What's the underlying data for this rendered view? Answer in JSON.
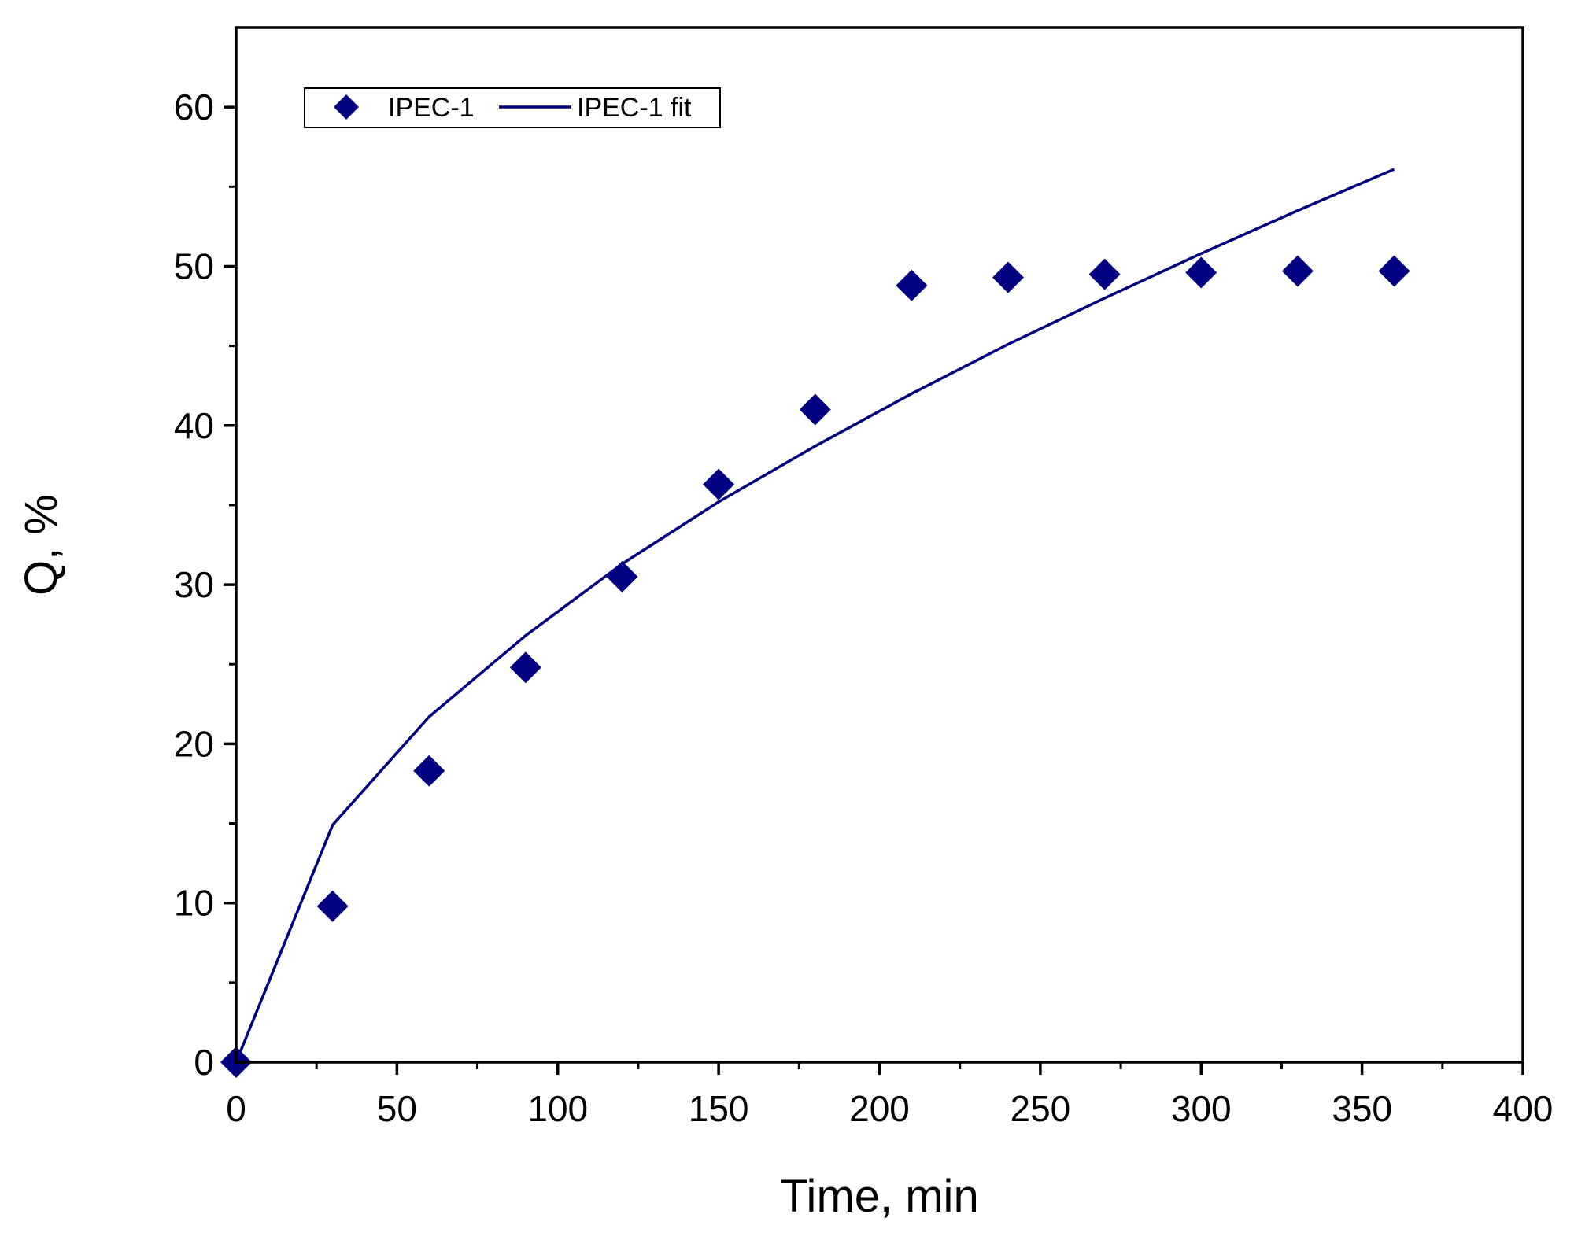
{
  "chart_data": {
    "type": "scatter",
    "title": "",
    "xlabel": "Time, min",
    "ylabel": "Q, %",
    "xlim": [
      0,
      400
    ],
    "ylim": [
      0,
      65
    ],
    "x_ticks": [
      0,
      50,
      100,
      150,
      200,
      250,
      300,
      350,
      400
    ],
    "y_ticks": [
      0,
      10,
      20,
      30,
      40,
      50,
      60
    ],
    "x_tick_labels": [
      "0",
      "50",
      "100",
      "150",
      "200",
      "250",
      "300",
      "350",
      "400"
    ],
    "y_tick_labels": [
      "0",
      "10",
      "20",
      "30",
      "40",
      "50",
      "60"
    ],
    "grid": false,
    "legend_position": "top-left",
    "series": [
      {
        "name": "IPEC-1",
        "kind": "scatter",
        "marker": "diamond",
        "color": "#000080",
        "x": [
          0,
          30,
          60,
          90,
          120,
          150,
          180,
          210,
          240,
          270,
          300,
          330,
          360
        ],
        "y": [
          0,
          9.8,
          18.3,
          24.8,
          30.5,
          36.3,
          41.0,
          48.8,
          49.3,
          49.5,
          49.6,
          49.7,
          49.7
        ]
      },
      {
        "name": "IPEC-1 fit",
        "kind": "line",
        "color": "#000080",
        "x": [
          0,
          30,
          60,
          90,
          120,
          150,
          180,
          210,
          240,
          270,
          300,
          330,
          360
        ],
        "y": [
          0,
          14.9,
          21.7,
          26.8,
          31.3,
          35.2,
          38.7,
          42.0,
          45.1,
          48.0,
          50.8,
          53.5,
          56.1
        ]
      }
    ]
  }
}
